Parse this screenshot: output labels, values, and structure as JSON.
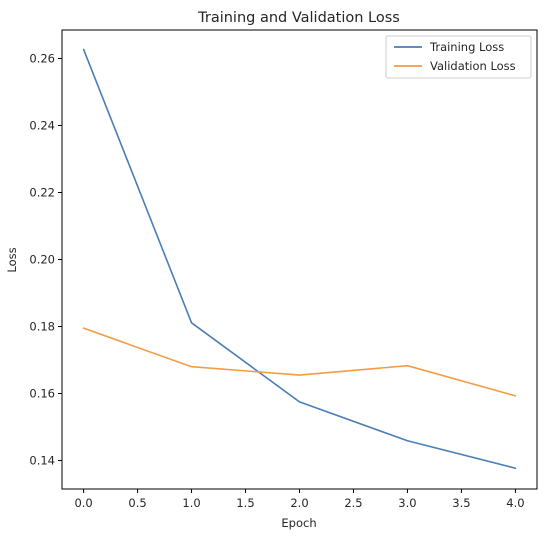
{
  "chart_data": {
    "type": "line",
    "title": "Training and Validation Loss",
    "xlabel": "Epoch",
    "ylabel": "Loss",
    "x": [
      0,
      1,
      2,
      3,
      4
    ],
    "series": [
      {
        "name": "Training Loss",
        "color": "#4a7eb5",
        "values": [
          0.2627,
          0.1811,
          0.1575,
          0.1459,
          0.1377
        ]
      },
      {
        "name": "Validation Loss",
        "color": "#f39c45",
        "values": [
          0.1795,
          0.168,
          0.1655,
          0.1683,
          0.1593
        ]
      }
    ],
    "xlim": [
      -0.2,
      4.2
    ],
    "ylim": [
      0.1315,
      0.2685
    ],
    "xticks": [
      0.0,
      0.5,
      1.0,
      1.5,
      2.0,
      2.5,
      3.0,
      3.5,
      4.0
    ],
    "xtick_labels": [
      "0.0",
      "0.5",
      "1.0",
      "1.5",
      "2.0",
      "2.5",
      "3.0",
      "3.5",
      "4.0"
    ],
    "yticks": [
      0.14,
      0.16,
      0.18,
      0.2,
      0.22,
      0.24,
      0.26
    ],
    "ytick_labels": [
      "0.14",
      "0.16",
      "0.18",
      "0.20",
      "0.22",
      "0.24",
      "0.26"
    ],
    "grid": false,
    "legend_position": "top-right"
  }
}
